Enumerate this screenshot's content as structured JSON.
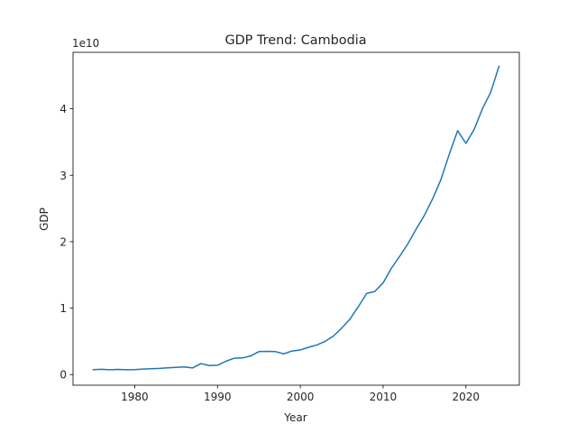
{
  "chart_data": {
    "type": "line",
    "title": "GDP Trend: Cambodia",
    "xlabel": "Year",
    "ylabel": "GDP",
    "y_offset_label": "1e10",
    "y_scale": 10000000000.0,
    "xlim": [
      1972.55,
      2026.45
    ],
    "ylim": [
      -1600000000.0,
      48500000000.0
    ],
    "x_ticks": [
      1980,
      1990,
      2000,
      2010,
      2020
    ],
    "y_ticks": [
      0,
      1,
      2,
      3,
      4
    ],
    "line_color": "#1f77b4",
    "grid": false,
    "series": [
      {
        "x": [
          1975,
          1976,
          1977,
          1978,
          1979,
          1980,
          1981,
          1982,
          1983,
          1984,
          1985,
          1986,
          1987,
          1988,
          1989,
          1990,
          1991,
          1992,
          1993,
          1994,
          1995,
          1996,
          1997,
          1998,
          1999,
          2000,
          2001,
          2002,
          2003,
          2004,
          2005,
          2006,
          2007,
          2008,
          2009,
          2010,
          2011,
          2012,
          2013,
          2014,
          2015,
          2016,
          2017,
          2018,
          2019,
          2020,
          2021,
          2022,
          2023,
          2024
        ],
        "values": [
          750000000.0,
          800000000.0,
          720000000.0,
          780000000.0,
          730000000.0,
          750000000.0,
          820000000.0,
          880000000.0,
          930000000.0,
          1020000000.0,
          1080000000.0,
          1150000000.0,
          1000000000.0,
          1650000000.0,
          1350000000.0,
          1400000000.0,
          2000000000.0,
          2450000000.0,
          2500000000.0,
          2800000000.0,
          3450000000.0,
          3500000000.0,
          3450000000.0,
          3120000000.0,
          3550000000.0,
          3700000000.0,
          4100000000.0,
          4450000000.0,
          5000000000.0,
          5800000000.0,
          7000000000.0,
          8350000000.0,
          10200000000.0,
          12200000000.0,
          12500000000.0,
          13800000000.0,
          16000000000.0,
          17800000000.0,
          19700000000.0,
          21900000000.0,
          24000000000.0,
          26500000000.0,
          29400000000.0,
          33200000000.0,
          36700000000.0,
          34800000000.0,
          36900000000.0,
          40000000000.0,
          42500000000.0,
          46400000000.0
        ]
      }
    ]
  }
}
